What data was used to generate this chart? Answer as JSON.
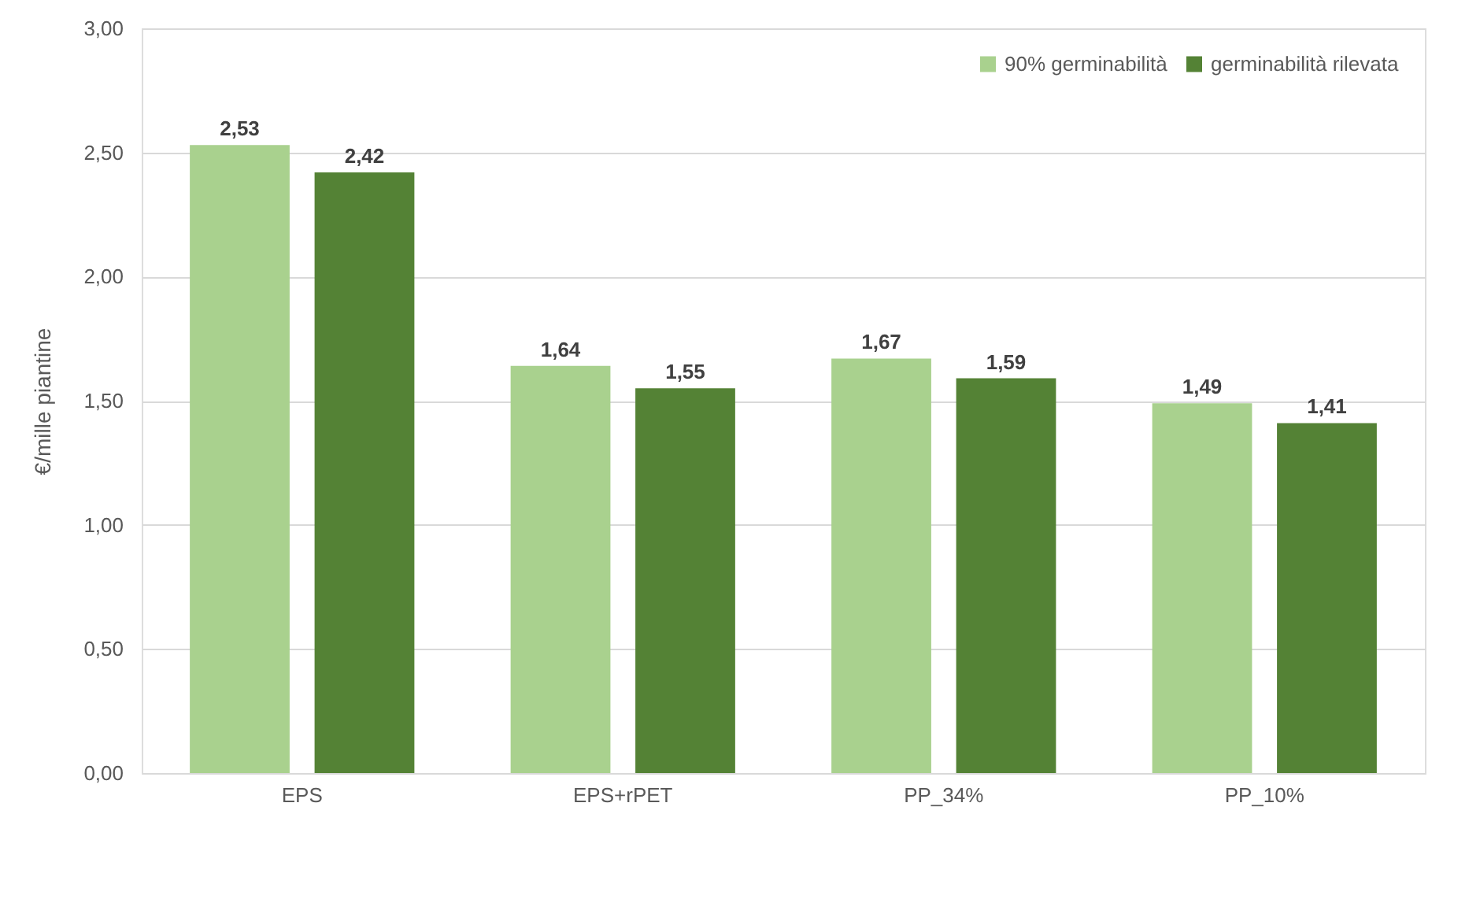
{
  "chart_data": {
    "type": "bar",
    "ylabel": "€/mille piantine",
    "categories": [
      "EPS",
      "EPS+rPET",
      "PP_34%",
      "PP_10%"
    ],
    "series": [
      {
        "name": "90% germinabilità",
        "color": "#a9d18e",
        "values": [
          2.53,
          1.64,
          1.67,
          1.49
        ],
        "value_labels": [
          "2,53",
          "1,64",
          "1,67",
          "1,49"
        ]
      },
      {
        "name": "germinabilità rilevata",
        "color": "#548235",
        "values": [
          2.42,
          1.55,
          1.59,
          1.41
        ],
        "value_labels": [
          "2,42",
          "1,55",
          "1,59",
          "1,41"
        ]
      }
    ],
    "ylim": [
      0,
      3
    ],
    "yticks": [
      {
        "value": 0,
        "label": "0,00"
      },
      {
        "value": 0.5,
        "label": "0,50"
      },
      {
        "value": 1,
        "label": "1,00"
      },
      {
        "value": 1.5,
        "label": "1,50"
      },
      {
        "value": 2,
        "label": "2,00"
      },
      {
        "value": 2.5,
        "label": "2,50"
      },
      {
        "value": 3,
        "label": "3,00"
      }
    ],
    "grid": "y",
    "legend": "top right"
  }
}
